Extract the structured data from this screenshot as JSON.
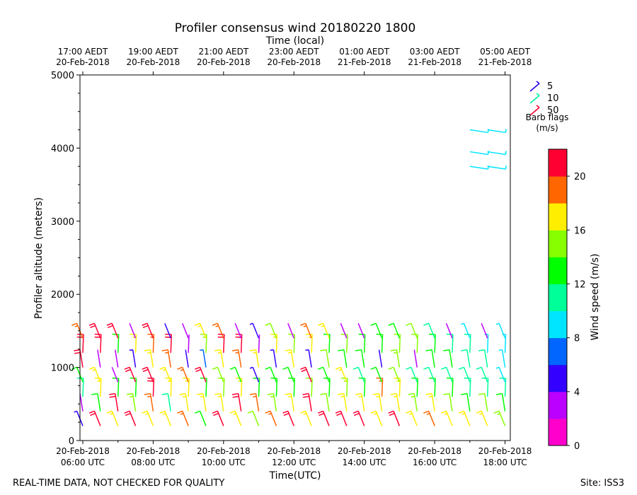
{
  "chart_data": {
    "type": "wind_barb",
    "title": "Profiler consensus wind 20180220 1800",
    "xlabel": "Time(UTC)",
    "x2label": "Time (local)",
    "ylabel": "Profiler altitude (meters)",
    "xlim_hours_utc": [
      5.92,
      18.15
    ],
    "ylim": [
      0,
      5000
    ],
    "y_ticks": [
      "0",
      "1000",
      "2000",
      "3000",
      "4000",
      "5000"
    ],
    "x_ticks_bottom": [
      {
        "line1": "20-Feb-2018",
        "line2": "06:00 UTC"
      },
      {
        "line1": "20-Feb-2018",
        "line2": "08:00 UTC"
      },
      {
        "line1": "20-Feb-2018",
        "line2": "10:00 UTC"
      },
      {
        "line1": "20-Feb-2018",
        "line2": "12:00 UTC"
      },
      {
        "line1": "20-Feb-2018",
        "line2": "14:00 UTC"
      },
      {
        "line1": "20-Feb-2018",
        "line2": "16:00 UTC"
      },
      {
        "line1": "20-Feb-2018",
        "line2": "18:00 UTC"
      }
    ],
    "x_ticks_top": [
      {
        "line1": "17:00 AEDT",
        "line2": "20-Feb-2018"
      },
      {
        "line1": "19:00 AEDT",
        "line2": "20-Feb-2018"
      },
      {
        "line1": "21:00 AEDT",
        "line2": "20-Feb-2018"
      },
      {
        "line1": "23:00 AEDT",
        "line2": "20-Feb-2018"
      },
      {
        "line1": "01:00 AEDT",
        "line2": "21-Feb-2018"
      },
      {
        "line1": "03:00 AEDT",
        "line2": "21-Feb-2018"
      },
      {
        "line1": "05:00 AEDT",
        "line2": "21-Feb-2018"
      }
    ],
    "barb_legend": {
      "title_line1": "Barb flags",
      "title_line2": "(m/s)",
      "items": [
        {
          "label": "5",
          "color": "#2200ee"
        },
        {
          "label": "10",
          "color": "#00f0a0"
        },
        {
          "label": "50",
          "color": "#ff0030"
        }
      ]
    },
    "colorbar": {
      "label": "Wind speed (m/s)",
      "min": 0,
      "max": 22,
      "tick_labels": [
        "0",
        "4",
        "8",
        "12",
        "16",
        "20"
      ],
      "colors": [
        "#ff00cc",
        "#bb00ff",
        "#3300ff",
        "#0066ff",
        "#00e5ff",
        "#00ff99",
        "#00ff00",
        "#88ff00",
        "#ffee00",
        "#ff6600",
        "#ff0033"
      ]
    },
    "times_utc": [
      6.0,
      6.5,
      7.0,
      7.5,
      8.0,
      8.5,
      9.0,
      9.5,
      10.0,
      10.5,
      11.0,
      11.5,
      12.0,
      12.5,
      13.0,
      13.5,
      14.0,
      14.5,
      15.0,
      15.5,
      16.0,
      16.5,
      17.0,
      17.5,
      18.0
    ],
    "altitudes_m": [
      200,
      400,
      600,
      800,
      1000,
      1200,
      1400,
      3750,
      3950,
      4250
    ],
    "wind_speed_ms": [
      [
        5,
        3,
        11,
        12,
        21,
        20,
        19
      ],
      [
        20,
        12,
        17,
        16,
        2,
        21,
        20
      ],
      [
        16,
        20,
        13,
        3,
        3,
        13,
        20
      ],
      [
        21,
        15,
        13,
        20,
        5,
        16,
        3
      ],
      [
        17,
        18,
        20,
        21,
        16,
        19,
        20
      ],
      [
        17,
        11,
        16,
        16,
        18,
        20,
        4
      ],
      [
        18,
        16,
        17,
        19,
        4,
        3,
        2
      ],
      [
        13,
        16,
        12,
        20,
        6,
        15,
        16
      ],
      [
        20,
        16,
        14,
        14,
        16,
        20,
        18
      ],
      [
        16,
        21,
        17,
        12,
        19,
        20,
        3
      ],
      [
        14,
        18,
        12,
        5,
        17,
        3,
        5
      ],
      [
        18,
        15,
        13,
        12,
        5,
        16,
        14
      ],
      [
        20,
        16,
        13,
        13,
        17,
        14,
        2
      ],
      [
        17,
        20,
        14,
        20,
        5,
        16,
        18
      ],
      [
        20,
        14,
        12,
        12,
        14,
        13,
        16
      ],
      [
        21,
        17,
        15,
        17,
        13,
        14,
        3
      ],
      [
        21,
        16,
        12,
        11,
        12,
        13,
        2
      ],
      [
        17,
        17,
        18,
        13,
        4,
        13,
        12
      ],
      [
        21,
        16,
        16,
        14,
        15,
        14,
        13
      ],
      [
        16,
        15,
        12,
        10,
        3,
        14,
        14
      ],
      [
        19,
        16,
        12,
        11,
        12,
        12,
        11
      ],
      [
        17,
        14,
        12,
        11,
        12,
        11,
        3
      ],
      [
        16,
        13,
        10,
        10,
        11,
        10,
        8,
        9,
        9,
        9
      ],
      [
        16,
        14,
        11,
        10,
        10,
        9,
        2,
        9,
        9,
        9
      ],
      [
        15,
        12,
        10,
        9,
        9,
        9,
        9
      ]
    ],
    "footer_left": "REAL-TIME DATA, NOT CHECKED FOR QUALITY",
    "footer_right": "Site: ISS3"
  }
}
